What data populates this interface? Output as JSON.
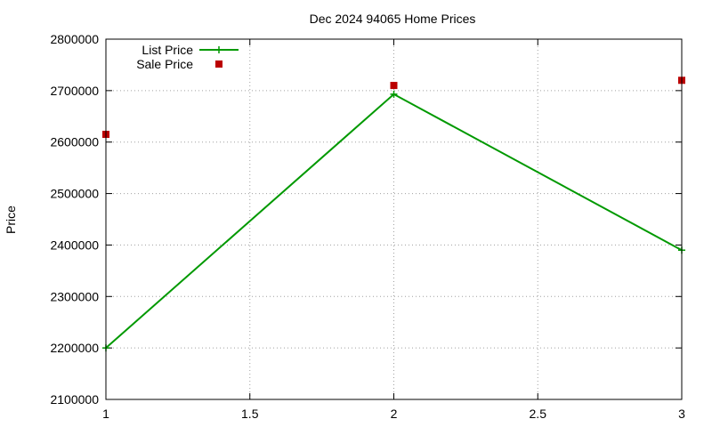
{
  "chart_data": {
    "type": "line",
    "title": "Dec 2024 94065 Home Prices",
    "xlabel": "",
    "ylabel": "Price",
    "xlim": [
      1,
      3
    ],
    "ylim": [
      2100000,
      2800000
    ],
    "x_ticks": [
      1,
      1.5,
      2,
      2.5,
      3
    ],
    "x_tick_labels": [
      "1",
      "1.5",
      "2",
      "2.5",
      "3"
    ],
    "y_ticks": [
      2100000,
      2200000,
      2300000,
      2400000,
      2500000,
      2600000,
      2700000,
      2800000
    ],
    "y_tick_labels": [
      "2100000",
      "2200000",
      "2300000",
      "2400000",
      "2500000",
      "2600000",
      "2700000",
      "2800000"
    ],
    "grid": true,
    "legend_position": "top-left",
    "series": [
      {
        "name": "List Price",
        "style": "line-with-plus-markers",
        "color": "#009900",
        "x": [
          1,
          2,
          3
        ],
        "values": [
          2200000,
          2693000,
          2390000
        ]
      },
      {
        "name": "Sale Price",
        "style": "square-markers",
        "color": "#bb0000",
        "x": [
          1,
          2,
          3
        ],
        "values": [
          2615000,
          2710000,
          2720000
        ]
      }
    ]
  }
}
